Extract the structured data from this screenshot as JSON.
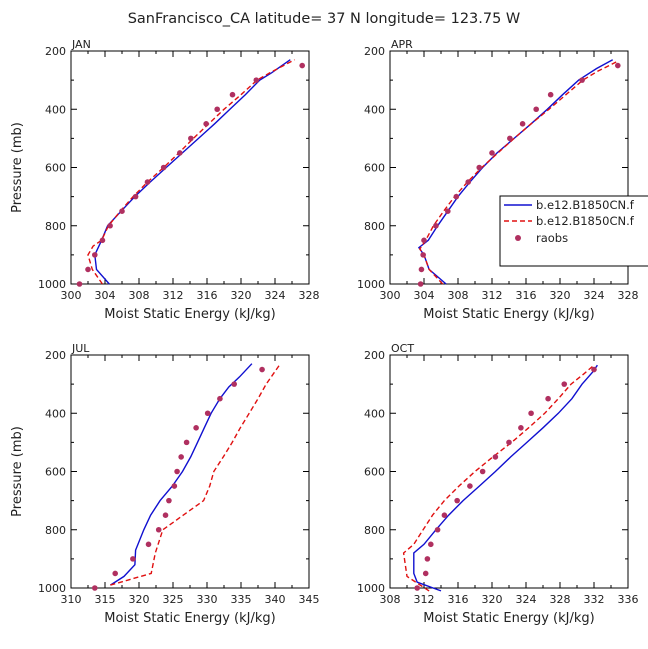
{
  "figure": {
    "title": "SanFrancisco_CA  latitude= 37 N longitude= 123.75 W"
  },
  "legend": {
    "entries": [
      {
        "label": "b.e12.B1850CN.f",
        "color": "#1010d0",
        "style": "solid"
      },
      {
        "label": "b.e12.B1850CN.f",
        "color": "#e01010",
        "style": "dashed"
      },
      {
        "label": "raobs",
        "color": "#b03060",
        "style": "dot"
      }
    ]
  },
  "chart_data": [
    {
      "type": "line",
      "title": "JAN",
      "xlabel": "Moist Static Energy (kJ/kg)",
      "ylabel": "Pressure (mb)",
      "xlim": [
        300,
        328
      ],
      "ylim": [
        1000,
        200
      ],
      "xticks": [
        300,
        304,
        308,
        312,
        316,
        320,
        324,
        328
      ],
      "yticks": [
        200,
        400,
        600,
        800,
        1000
      ],
      "series": [
        {
          "name": "b.e12.B1850CN.f",
          "kind": "solid",
          "points": [
            [
              304.5,
              1000
            ],
            [
              303.0,
              950
            ],
            [
              302.8,
              900
            ],
            [
              303.6,
              850
            ],
            [
              304.3,
              800
            ],
            [
              305.9,
              750
            ],
            [
              307.5,
              700
            ],
            [
              309.3,
              650
            ],
            [
              311.2,
              600
            ],
            [
              313.1,
              550
            ],
            [
              315.0,
              500
            ],
            [
              316.9,
              450
            ],
            [
              318.7,
              400
            ],
            [
              320.5,
              350
            ],
            [
              322.2,
              300
            ],
            [
              323.6,
              275
            ],
            [
              325.8,
              230
            ]
          ]
        },
        {
          "name": "b.e12.B1850CN.f",
          "kind": "dashed",
          "points": [
            [
              303.7,
              1000
            ],
            [
              302.5,
              950
            ],
            [
              302.0,
              900
            ],
            [
              302.6,
              870
            ],
            [
              303.6,
              850
            ],
            [
              304.4,
              800
            ],
            [
              305.8,
              750
            ],
            [
              307.3,
              700
            ],
            [
              309.0,
              650
            ],
            [
              310.9,
              600
            ],
            [
              312.7,
              550
            ],
            [
              314.4,
              500
            ],
            [
              316.2,
              450
            ],
            [
              318.0,
              400
            ],
            [
              320.0,
              350
            ],
            [
              321.9,
              300
            ],
            [
              323.4,
              275
            ],
            [
              326.3,
              230
            ]
          ]
        },
        {
          "name": "raobs",
          "kind": "dots",
          "points": [
            [
              301.0,
              1000
            ],
            [
              302.0,
              950
            ],
            [
              302.8,
              900
            ],
            [
              303.7,
              850
            ],
            [
              304.6,
              800
            ],
            [
              306.0,
              750
            ],
            [
              307.6,
              700
            ],
            [
              309.0,
              650
            ],
            [
              310.9,
              600
            ],
            [
              312.8,
              550
            ],
            [
              314.1,
              500
            ],
            [
              315.9,
              450
            ],
            [
              317.2,
              400
            ],
            [
              319.0,
              350
            ],
            [
              321.8,
              300
            ],
            [
              327.2,
              250
            ]
          ]
        }
      ]
    },
    {
      "type": "line",
      "title": "APR",
      "xlabel": "Moist Static Energy (kJ/kg)",
      "ylabel": "",
      "xlim": [
        300,
        328
      ],
      "ylim": [
        1000,
        200
      ],
      "xticks": [
        300,
        304,
        308,
        312,
        316,
        320,
        324,
        328
      ],
      "yticks": [
        200,
        400,
        600,
        800,
        1000
      ],
      "series": [
        {
          "name": "b.e12.B1850CN.f",
          "kind": "solid",
          "points": [
            [
              306.6,
              1000
            ],
            [
              304.6,
              950
            ],
            [
              304.0,
              900
            ],
            [
              303.4,
              875
            ],
            [
              304.5,
              850
            ],
            [
              305.6,
              800
            ],
            [
              306.8,
              750
            ],
            [
              308.0,
              700
            ],
            [
              309.4,
              650
            ],
            [
              310.9,
              600
            ],
            [
              312.6,
              550
            ],
            [
              314.6,
              500
            ],
            [
              316.6,
              450
            ],
            [
              318.5,
              400
            ],
            [
              320.3,
              350
            ],
            [
              322.2,
              300
            ],
            [
              324.3,
              260
            ],
            [
              326.2,
              230
            ]
          ]
        },
        {
          "name": "b.e12.B1850CN.f",
          "kind": "dashed",
          "points": [
            [
              306.2,
              1000
            ],
            [
              304.6,
              950
            ],
            [
              304.0,
              900
            ],
            [
              303.5,
              880
            ],
            [
              304.2,
              850
            ],
            [
              305.1,
              800
            ],
            [
              306.3,
              750
            ],
            [
              307.6,
              700
            ],
            [
              309.1,
              650
            ],
            [
              310.8,
              600
            ],
            [
              312.7,
              550
            ],
            [
              314.6,
              500
            ],
            [
              316.6,
              450
            ],
            [
              318.7,
              400
            ],
            [
              320.7,
              350
            ],
            [
              322.7,
              300
            ],
            [
              324.4,
              270
            ],
            [
              326.8,
              235
            ]
          ]
        },
        {
          "name": "raobs",
          "kind": "dots",
          "points": [
            [
              303.6,
              1000
            ],
            [
              303.7,
              950
            ],
            [
              303.9,
              900
            ],
            [
              304.0,
              850
            ],
            [
              305.4,
              800
            ],
            [
              306.8,
              750
            ],
            [
              307.8,
              700
            ],
            [
              309.2,
              650
            ],
            [
              310.5,
              600
            ],
            [
              312.0,
              550
            ],
            [
              314.1,
              500
            ],
            [
              315.6,
              450
            ],
            [
              317.2,
              400
            ],
            [
              318.9,
              350
            ],
            [
              322.6,
              300
            ],
            [
              326.8,
              250
            ]
          ]
        }
      ]
    },
    {
      "type": "line",
      "title": "JUL",
      "xlabel": "Moist Static Energy (kJ/kg)",
      "ylabel": "Pressure (mb)",
      "xlim": [
        310,
        345
      ],
      "ylim": [
        1000,
        200
      ],
      "xticks": [
        310,
        315,
        320,
        325,
        330,
        335,
        340,
        345
      ],
      "yticks": [
        200,
        400,
        600,
        800,
        1000
      ],
      "series": [
        {
          "name": "b.e12.B1850CN.f",
          "kind": "solid",
          "points": [
            [
              315.8,
              990
            ],
            [
              317.8,
              960
            ],
            [
              319.4,
              920
            ],
            [
              319.5,
              870
            ],
            [
              320.7,
              800
            ],
            [
              321.7,
              750
            ],
            [
              323.1,
              700
            ],
            [
              324.9,
              650
            ],
            [
              326.4,
              600
            ],
            [
              327.6,
              550
            ],
            [
              328.6,
              500
            ],
            [
              329.6,
              450
            ],
            [
              330.6,
              400
            ],
            [
              331.9,
              350
            ],
            [
              333.2,
              310
            ],
            [
              334.8,
              275
            ],
            [
              336.6,
              230
            ]
          ]
        },
        {
          "name": "b.e12.B1850CN.f",
          "kind": "dashed",
          "points": [
            [
              315.8,
              990
            ],
            [
              321.8,
              950
            ],
            [
              322.4,
              880
            ],
            [
              323.5,
              800
            ],
            [
              326.5,
              750
            ],
            [
              329.5,
              700
            ],
            [
              330.4,
              650
            ],
            [
              331.0,
              600
            ],
            [
              332.4,
              550
            ],
            [
              333.7,
              500
            ],
            [
              334.9,
              450
            ],
            [
              336.2,
              400
            ],
            [
              337.5,
              350
            ],
            [
              338.7,
              300
            ],
            [
              340.8,
              230
            ]
          ]
        },
        {
          "name": "raobs",
          "kind": "dots",
          "points": [
            [
              313.5,
              1000
            ],
            [
              316.5,
              950
            ],
            [
              319.1,
              900
            ],
            [
              321.4,
              850
            ],
            [
              322.9,
              800
            ],
            [
              323.9,
              750
            ],
            [
              324.4,
              700
            ],
            [
              325.2,
              650
            ],
            [
              325.6,
              600
            ],
            [
              326.2,
              550
            ],
            [
              327.0,
              500
            ],
            [
              328.4,
              450
            ],
            [
              330.1,
              400
            ],
            [
              331.9,
              350
            ],
            [
              334.0,
              300
            ],
            [
              338.1,
              250
            ]
          ]
        }
      ]
    },
    {
      "type": "line",
      "title": "OCT",
      "xlabel": "Moist Static Energy (kJ/kg)",
      "ylabel": "",
      "xlim": [
        308,
        336
      ],
      "ylim": [
        1000,
        200
      ],
      "xticks": [
        308,
        312,
        316,
        320,
        324,
        328,
        332,
        336
      ],
      "yticks": [
        200,
        400,
        600,
        800,
        1000
      ],
      "series": [
        {
          "name": "b.e12.B1850CN.f",
          "kind": "solid",
          "points": [
            [
              314.0,
              1010
            ],
            [
              311.2,
              980
            ],
            [
              310.8,
              950
            ],
            [
              310.8,
              880
            ],
            [
              312.0,
              850
            ],
            [
              313.4,
              800
            ],
            [
              314.9,
              750
            ],
            [
              316.6,
              700
            ],
            [
              318.5,
              650
            ],
            [
              320.4,
              600
            ],
            [
              322.2,
              550
            ],
            [
              324.1,
              500
            ],
            [
              326.0,
              450
            ],
            [
              327.8,
              400
            ],
            [
              329.4,
              350
            ],
            [
              330.6,
              300
            ],
            [
              331.8,
              260
            ],
            [
              332.4,
              235
            ]
          ]
        },
        {
          "name": "b.e12.B1850CN.f",
          "kind": "dashed",
          "points": [
            [
              312.6,
              1010
            ],
            [
              310.0,
              960
            ],
            [
              309.6,
              880
            ],
            [
              310.8,
              850
            ],
            [
              311.9,
              800
            ],
            [
              313.0,
              750
            ],
            [
              314.4,
              700
            ],
            [
              316.1,
              650
            ],
            [
              318.0,
              600
            ],
            [
              320.1,
              550
            ],
            [
              322.3,
              500
            ],
            [
              324.3,
              450
            ],
            [
              326.2,
              400
            ],
            [
              327.8,
              350
            ],
            [
              329.3,
              300
            ],
            [
              330.8,
              265
            ],
            [
              332.0,
              235
            ]
          ]
        },
        {
          "name": "raobs",
          "kind": "dots",
          "points": [
            [
              311.2,
              1000
            ],
            [
              312.2,
              950
            ],
            [
              312.4,
              900
            ],
            [
              312.8,
              850
            ],
            [
              313.6,
              800
            ],
            [
              314.4,
              750
            ],
            [
              315.9,
              700
            ],
            [
              317.4,
              650
            ],
            [
              318.9,
              600
            ],
            [
              320.4,
              550
            ],
            [
              322.0,
              500
            ],
            [
              323.4,
              450
            ],
            [
              324.6,
              400
            ],
            [
              326.6,
              350
            ],
            [
              328.5,
              300
            ],
            [
              332.0,
              250
            ]
          ]
        }
      ]
    }
  ]
}
